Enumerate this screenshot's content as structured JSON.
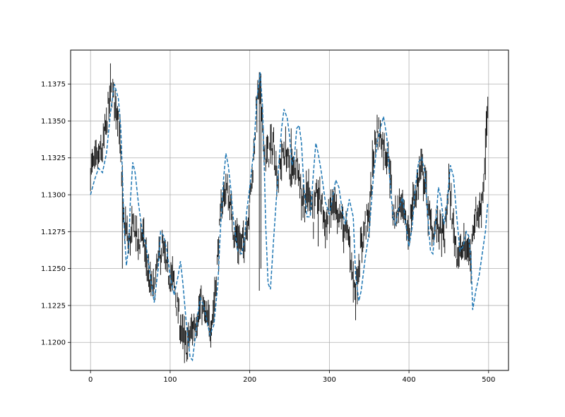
{
  "chart_data": {
    "type": "line",
    "title": "",
    "xlabel": "",
    "ylabel": "",
    "xlim": [
      -25,
      525
    ],
    "ylim": [
      1.1181,
      1.1398
    ],
    "grid": true,
    "x_ticks": [
      0,
      100,
      200,
      300,
      400,
      500
    ],
    "x_tick_labels": [
      "0",
      "100",
      "200",
      "300",
      "400",
      "500"
    ],
    "y_ticks": [
      1.12,
      1.1225,
      1.125,
      1.1275,
      1.13,
      1.1325,
      1.135,
      1.1375
    ],
    "y_tick_labels": [
      "1.1200",
      "1.1225",
      "1.1250",
      "1.1275",
      "1.1300",
      "1.1325",
      "1.1350",
      "1.1375"
    ],
    "series": [
      {
        "style": "bars",
        "color": "#000000",
        "anchors": [
          [
            0,
            1.1318
          ],
          [
            5,
            1.132
          ],
          [
            10,
            1.1325
          ],
          [
            15,
            1.133
          ],
          [
            20,
            1.1348
          ],
          [
            25,
            1.137
          ],
          [
            30,
            1.1365
          ],
          [
            35,
            1.1355
          ],
          [
            38,
            1.1325
          ],
          [
            40,
            1.1285
          ],
          [
            45,
            1.1275
          ],
          [
            48,
            1.1265
          ],
          [
            50,
            1.127
          ],
          [
            55,
            1.128
          ],
          [
            60,
            1.1265
          ],
          [
            65,
            1.1275
          ],
          [
            70,
            1.1255
          ],
          [
            75,
            1.1238
          ],
          [
            80,
            1.1235
          ],
          [
            85,
            1.1255
          ],
          [
            90,
            1.1265
          ],
          [
            95,
            1.125
          ],
          [
            100,
            1.1245
          ],
          [
            105,
            1.124
          ],
          [
            110,
            1.122
          ],
          [
            115,
            1.1205
          ],
          [
            120,
            1.1195
          ],
          [
            125,
            1.1205
          ],
          [
            130,
            1.1212
          ],
          [
            135,
            1.122
          ],
          [
            140,
            1.1225
          ],
          [
            145,
            1.1215
          ],
          [
            150,
            1.121
          ],
          [
            155,
            1.1225
          ],
          [
            160,
            1.126
          ],
          [
            165,
            1.1295
          ],
          [
            170,
            1.1305
          ],
          [
            175,
            1.1295
          ],
          [
            180,
            1.1275
          ],
          [
            185,
            1.127
          ],
          [
            190,
            1.1265
          ],
          [
            195,
            1.1275
          ],
          [
            200,
            1.1295
          ],
          [
            205,
            1.1325
          ],
          [
            208,
            1.1355
          ],
          [
            212,
            1.1375
          ],
          [
            215,
            1.135
          ],
          [
            220,
            1.1325
          ],
          [
            225,
            1.133
          ],
          [
            230,
            1.1335
          ],
          [
            235,
            1.131
          ],
          [
            240,
            1.1325
          ],
          [
            245,
            1.133
          ],
          [
            250,
            1.1318
          ],
          [
            255,
            1.1315
          ],
          [
            260,
            1.1325
          ],
          [
            265,
            1.13
          ],
          [
            270,
            1.1295
          ],
          [
            275,
            1.1305
          ],
          [
            280,
            1.1285
          ],
          [
            285,
            1.13
          ],
          [
            290,
            1.1295
          ],
          [
            295,
            1.128
          ],
          [
            300,
            1.1285
          ],
          [
            305,
            1.1295
          ],
          [
            310,
            1.128
          ],
          [
            315,
            1.1285
          ],
          [
            320,
            1.1275
          ],
          [
            325,
            1.127
          ],
          [
            330,
            1.124
          ],
          [
            333,
            1.1235
          ],
          [
            336,
            1.125
          ],
          [
            340,
            1.1265
          ],
          [
            345,
            1.128
          ],
          [
            350,
            1.1285
          ],
          [
            355,
            1.1325
          ],
          [
            360,
            1.1345
          ],
          [
            365,
            1.134
          ],
          [
            370,
            1.133
          ],
          [
            375,
            1.1325
          ],
          [
            378,
            1.13
          ],
          [
            380,
            1.1285
          ],
          [
            385,
            1.129
          ],
          [
            390,
            1.1295
          ],
          [
            395,
            1.128
          ],
          [
            400,
            1.1275
          ],
          [
            405,
            1.1295
          ],
          [
            410,
            1.1305
          ],
          [
            415,
            1.1318
          ],
          [
            420,
            1.131
          ],
          [
            425,
            1.1285
          ],
          [
            430,
            1.1275
          ],
          [
            435,
            1.128
          ],
          [
            440,
            1.1275
          ],
          [
            445,
            1.127
          ],
          [
            450,
            1.131
          ],
          [
            455,
            1.128
          ],
          [
            460,
            1.1262
          ],
          [
            465,
            1.126
          ],
          [
            470,
            1.1265
          ],
          [
            475,
            1.1262
          ],
          [
            478,
            1.1255
          ],
          [
            480,
            1.128
          ],
          [
            485,
            1.1288
          ],
          [
            490,
            1.129
          ],
          [
            494,
            1.131
          ],
          [
            497,
            1.1345
          ],
          [
            499,
            1.1355
          ]
        ],
        "spikes": [
          [
            212,
            1.1383,
            1.1235
          ],
          [
            214,
            1.1382,
            1.125
          ],
          [
            40,
            1.132,
            1.125
          ],
          [
            330,
            1.1255,
            1.1227
          ],
          [
            118,
            1.1218,
            1.1186
          ],
          [
            24,
            1.1374,
            1.1355
          ],
          [
            286,
            1.131,
            1.1265
          ],
          [
            252,
            1.1345,
            1.1305
          ],
          [
            498,
            1.136,
            1.134
          ],
          [
            477,
            1.127,
            1.1248
          ],
          [
            496,
            1.1345,
            1.131
          ]
        ]
      },
      {
        "style": "dashed",
        "color": "#1f77b4",
        "values": [
          [
            0,
            1.13
          ],
          [
            5,
            1.131
          ],
          [
            10,
            1.1318
          ],
          [
            15,
            1.1315
          ],
          [
            20,
            1.1328
          ],
          [
            25,
            1.1355
          ],
          [
            30,
            1.1375
          ],
          [
            35,
            1.1365
          ],
          [
            38,
            1.1345
          ],
          [
            40,
            1.1315
          ],
          [
            42,
            1.128
          ],
          [
            45,
            1.1252
          ],
          [
            48,
            1.1265
          ],
          [
            50,
            1.1295
          ],
          [
            53,
            1.1322
          ],
          [
            56,
            1.1315
          ],
          [
            60,
            1.1295
          ],
          [
            65,
            1.1275
          ],
          [
            70,
            1.1265
          ],
          [
            75,
            1.1245
          ],
          [
            80,
            1.1227
          ],
          [
            85,
            1.125
          ],
          [
            88,
            1.1275
          ],
          [
            92,
            1.1272
          ],
          [
            96,
            1.1262
          ],
          [
            100,
            1.1245
          ],
          [
            105,
            1.1232
          ],
          [
            110,
            1.1245
          ],
          [
            113,
            1.1255
          ],
          [
            116,
            1.124
          ],
          [
            120,
            1.1215
          ],
          [
            125,
            1.119
          ],
          [
            128,
            1.1188
          ],
          [
            132,
            1.1205
          ],
          [
            135,
            1.122
          ],
          [
            138,
            1.123
          ],
          [
            142,
            1.1225
          ],
          [
            146,
            1.1215
          ],
          [
            150,
            1.1205
          ],
          [
            155,
            1.1212
          ],
          [
            160,
            1.124
          ],
          [
            163,
            1.1275
          ],
          [
            167,
            1.131
          ],
          [
            170,
            1.1328
          ],
          [
            173,
            1.132
          ],
          [
            176,
            1.1305
          ],
          [
            180,
            1.128
          ],
          [
            185,
            1.1262
          ],
          [
            190,
            1.126
          ],
          [
            193,
            1.1268
          ],
          [
            196,
            1.1288
          ],
          [
            200,
            1.1305
          ],
          [
            205,
            1.133
          ],
          [
            209,
            1.1365
          ],
          [
            213,
            1.1383
          ],
          [
            216,
            1.136
          ],
          [
            218,
            1.1325
          ],
          [
            220,
            1.128
          ],
          [
            223,
            1.124
          ],
          [
            226,
            1.1236
          ],
          [
            230,
            1.127
          ],
          [
            235,
            1.131
          ],
          [
            240,
            1.1345
          ],
          [
            243,
            1.1358
          ],
          [
            247,
            1.1352
          ],
          [
            250,
            1.134
          ],
          [
            253,
            1.132
          ],
          [
            256,
            1.1325
          ],
          [
            259,
            1.1345
          ],
          [
            262,
            1.1347
          ],
          [
            265,
            1.1335
          ],
          [
            268,
            1.1305
          ],
          [
            272,
            1.1285
          ],
          [
            276,
            1.1285
          ],
          [
            280,
            1.1315
          ],
          [
            283,
            1.1335
          ],
          [
            286,
            1.1328
          ],
          [
            290,
            1.1315
          ],
          [
            295,
            1.1295
          ],
          [
            300,
            1.1287
          ],
          [
            304,
            1.1298
          ],
          [
            308,
            1.131
          ],
          [
            312,
            1.1305
          ],
          [
            316,
            1.129
          ],
          [
            320,
            1.128
          ],
          [
            325,
            1.1297
          ],
          [
            330,
            1.1285
          ],
          [
            333,
            1.1245
          ],
          [
            337,
            1.1228
          ],
          [
            340,
            1.1235
          ],
          [
            345,
            1.1257
          ],
          [
            350,
            1.1275
          ],
          [
            355,
            1.131
          ],
          [
            360,
            1.1335
          ],
          [
            365,
            1.1347
          ],
          [
            368,
            1.1353
          ],
          [
            372,
            1.134
          ],
          [
            376,
            1.131
          ],
          [
            380,
            1.1285
          ],
          [
            383,
            1.128
          ],
          [
            387,
            1.129
          ],
          [
            392,
            1.1298
          ],
          [
            396,
            1.128
          ],
          [
            400,
            1.1265
          ],
          [
            404,
            1.1278
          ],
          [
            408,
            1.1305
          ],
          [
            412,
            1.1322
          ],
          [
            416,
            1.1325
          ],
          [
            420,
            1.1315
          ],
          [
            423,
            1.129
          ],
          [
            427,
            1.1262
          ],
          [
            430,
            1.126
          ],
          [
            433,
            1.1278
          ],
          [
            437,
            1.1305
          ],
          [
            440,
            1.1298
          ],
          [
            444,
            1.128
          ],
          [
            448,
            1.1295
          ],
          [
            452,
            1.132
          ],
          [
            456,
            1.1312
          ],
          [
            460,
            1.1285
          ],
          [
            464,
            1.1262
          ],
          [
            468,
            1.1265
          ],
          [
            472,
            1.1275
          ],
          [
            475,
            1.1272
          ],
          [
            478,
            1.1255
          ],
          [
            480,
            1.1222
          ],
          [
            484,
            1.1235
          ],
          [
            488,
            1.1245
          ],
          [
            492,
            1.126
          ],
          [
            496,
            1.1275
          ],
          [
            499,
            1.1295
          ]
        ]
      }
    ]
  }
}
